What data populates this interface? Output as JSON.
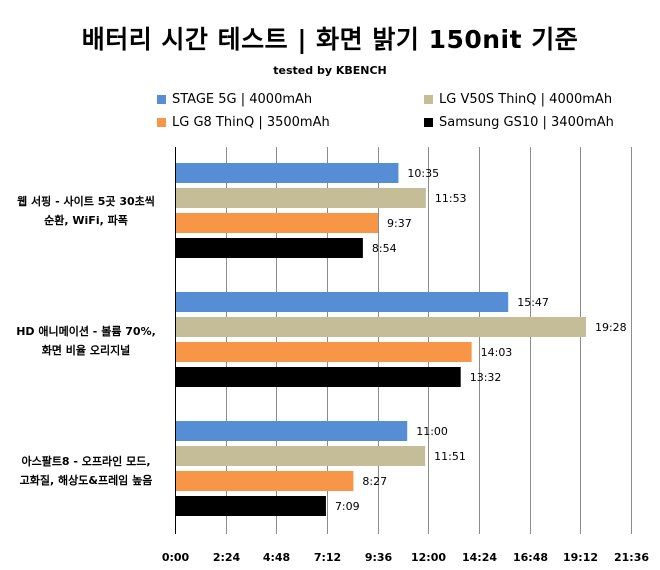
{
  "chart_data": {
    "type": "bar",
    "orientation": "horizontal",
    "title": "배터리 시간 테스트 | 화면 밝기 150nit 기준",
    "subtitle": "tested by KBENCH",
    "categories": [
      [
        "웹 서핑 - 사이트 5곳 30초씩",
        "순환, WiFi, 파폭"
      ],
      [
        "HD 애니메이션 - 볼륨 70%,",
        "화면 비율 오리지널"
      ],
      [
        "아스팔트8 - 오프라인 모드,",
        "고화질, 해상도&프레임 높음"
      ]
    ],
    "series": [
      {
        "name": "STAGE 5G | 4000mAh",
        "color": "#558ed5",
        "minutes": [
          635,
          947,
          660
        ],
        "labels": [
          "10:35",
          "15:47",
          "11:00"
        ]
      },
      {
        "name": "LG V50S ThinQ | 4000mAh",
        "color": "#c4bd97",
        "minutes": [
          713,
          1168,
          711
        ],
        "labels": [
          "11:53",
          "19:28",
          "11:51"
        ]
      },
      {
        "name": "LG G8 ThinQ | 3500mAh",
        "color": "#f79646",
        "minutes": [
          577,
          843,
          507
        ],
        "labels": [
          "9:37",
          "14:03",
          "8:27"
        ]
      },
      {
        "name": "Samsung GS10 | 3400mAh",
        "color": "#000000",
        "minutes": [
          534,
          812,
          429
        ],
        "labels": [
          "8:54",
          "13:32",
          "7:09"
        ]
      }
    ],
    "xlim": [
      0,
      1296
    ],
    "xticks": [
      0,
      144,
      288,
      432,
      576,
      720,
      864,
      1008,
      1152,
      1296
    ],
    "xtick_labels": [
      "0:00",
      "2:24",
      "4:48",
      "7:12",
      "9:36",
      "12:00",
      "14:24",
      "16:48",
      "19:12",
      "21:36"
    ],
    "grid": true,
    "legend_position": "top"
  }
}
